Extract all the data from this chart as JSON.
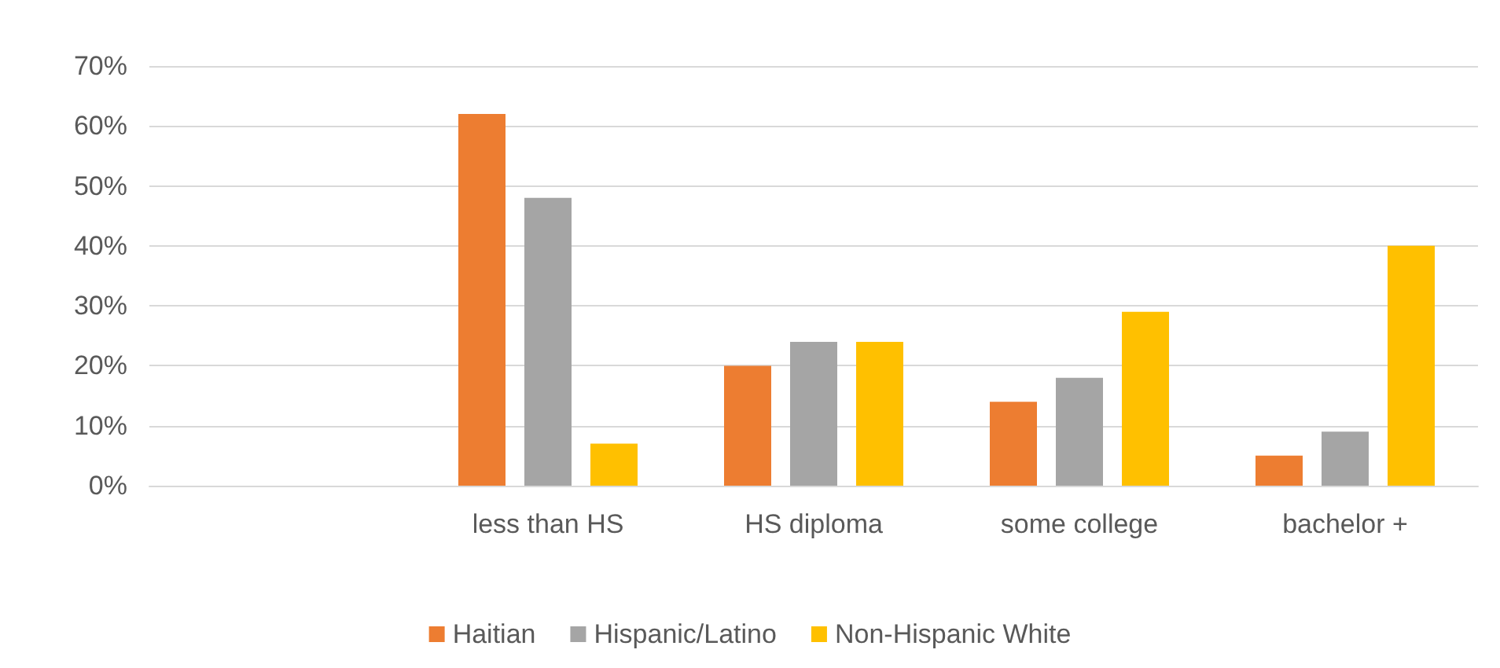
{
  "chart_data": {
    "type": "bar",
    "categories": [
      null,
      "less than HS",
      "HS diploma",
      "some college",
      "bachelor +"
    ],
    "series": [
      {
        "name": "Haitian",
        "color": "#ed7d31",
        "values": [
          null,
          62,
          20,
          14,
          5
        ]
      },
      {
        "name": "Hispanic/Latino",
        "color": "#a5a5a5",
        "values": [
          null,
          48,
          24,
          18,
          9
        ]
      },
      {
        "name": "Non-Hispanic White",
        "color": "#ffc000",
        "values": [
          null,
          7,
          24,
          29,
          40
        ]
      }
    ],
    "ylim": [
      0,
      70
    ],
    "yticks": [
      {
        "value": 0,
        "label": "0%"
      },
      {
        "value": 10,
        "label": "10%"
      },
      {
        "value": 20,
        "label": "20%"
      },
      {
        "value": 30,
        "label": "30%"
      },
      {
        "value": 40,
        "label": "40%"
      },
      {
        "value": 50,
        "label": "50%"
      },
      {
        "value": 60,
        "label": "60%"
      },
      {
        "value": 70,
        "label": "70%"
      }
    ],
    "grid": "y",
    "legend": "bottom"
  }
}
